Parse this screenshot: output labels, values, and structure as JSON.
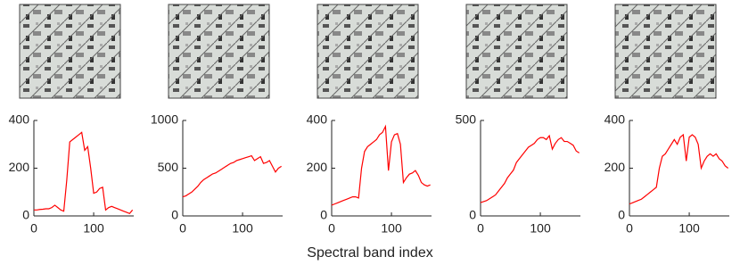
{
  "chart_data": [
    {
      "type": "line",
      "x": [
        0,
        5,
        10,
        15,
        20,
        25,
        30,
        35,
        40,
        45,
        50,
        55,
        60,
        65,
        70,
        75,
        80,
        85,
        90,
        95,
        100,
        105,
        110,
        115,
        120,
        125,
        130,
        135,
        140,
        145,
        150,
        155,
        160,
        165
      ],
      "series": [
        {
          "color": "#ff0000",
          "values": [
            25,
            25,
            27,
            28,
            30,
            30,
            35,
            45,
            35,
            25,
            20,
            150,
            310,
            320,
            330,
            340,
            350,
            275,
            290,
            200,
            95,
            100,
            115,
            120,
            25,
            35,
            40,
            35,
            30,
            25,
            20,
            15,
            10,
            25
          ]
        }
      ],
      "xlim": [
        0,
        167
      ],
      "xticks": [
        0,
        100
      ],
      "ylim": [
        0,
        400
      ],
      "yticks": [
        0,
        200,
        400
      ]
    },
    {
      "type": "line",
      "x": [
        0,
        5,
        10,
        15,
        20,
        25,
        30,
        35,
        40,
        45,
        50,
        55,
        60,
        65,
        70,
        75,
        80,
        85,
        90,
        95,
        100,
        105,
        110,
        115,
        120,
        125,
        130,
        135,
        140,
        145,
        150,
        155,
        160,
        165
      ],
      "series": [
        {
          "color": "#ff0000",
          "values": [
            200,
            210,
            230,
            250,
            280,
            310,
            350,
            380,
            400,
            420,
            440,
            450,
            470,
            490,
            510,
            530,
            550,
            560,
            580,
            590,
            600,
            610,
            620,
            630,
            580,
            600,
            620,
            550,
            560,
            580,
            520,
            460,
            500,
            520
          ]
        }
      ],
      "xlim": [
        0,
        167
      ],
      "xticks": [
        0,
        100
      ],
      "ylim": [
        0,
        1000
      ],
      "yticks": [
        0,
        500,
        1000
      ]
    },
    {
      "type": "line",
      "x": [
        0,
        5,
        10,
        15,
        20,
        25,
        30,
        35,
        40,
        45,
        50,
        55,
        60,
        65,
        70,
        75,
        80,
        85,
        90,
        95,
        100,
        105,
        110,
        115,
        120,
        125,
        130,
        135,
        140,
        145,
        150,
        155,
        160,
        165
      ],
      "series": [
        {
          "color": "#ff0000",
          "values": [
            45,
            50,
            55,
            60,
            65,
            70,
            75,
            80,
            80,
            75,
            200,
            270,
            290,
            300,
            310,
            320,
            340,
            350,
            375,
            190,
            310,
            340,
            345,
            300,
            140,
            160,
            175,
            180,
            190,
            170,
            140,
            130,
            125,
            130
          ]
        }
      ],
      "xlim": [
        0,
        167
      ],
      "xticks": [
        0,
        100
      ],
      "ylim": [
        0,
        400
      ],
      "yticks": [
        0,
        200,
        400
      ]
    },
    {
      "type": "line",
      "x": [
        0,
        5,
        10,
        15,
        20,
        25,
        30,
        35,
        40,
        45,
        50,
        55,
        60,
        65,
        70,
        75,
        80,
        85,
        90,
        95,
        100,
        105,
        110,
        115,
        120,
        125,
        130,
        135,
        140,
        145,
        150,
        155,
        160,
        165
      ],
      "series": [
        {
          "color": "#ff0000",
          "values": [
            70,
            75,
            80,
            90,
            100,
            110,
            130,
            150,
            170,
            200,
            220,
            240,
            280,
            300,
            320,
            340,
            360,
            370,
            380,
            400,
            410,
            410,
            400,
            420,
            350,
            380,
            400,
            410,
            390,
            390,
            380,
            370,
            340,
            330
          ]
        }
      ],
      "xlim": [
        0,
        167
      ],
      "xticks": [
        0,
        100
      ],
      "ylim": [
        0,
        500
      ],
      "yticks": [
        0,
        500
      ]
    },
    {
      "type": "line",
      "x": [
        0,
        5,
        10,
        15,
        20,
        25,
        30,
        35,
        40,
        45,
        50,
        55,
        60,
        65,
        70,
        75,
        80,
        85,
        90,
        95,
        100,
        105,
        110,
        115,
        120,
        125,
        130,
        135,
        140,
        145,
        150,
        155,
        160,
        165
      ],
      "series": [
        {
          "color": "#ff0000",
          "values": [
            50,
            55,
            60,
            65,
            70,
            80,
            90,
            100,
            110,
            120,
            200,
            250,
            260,
            280,
            300,
            320,
            300,
            330,
            340,
            230,
            330,
            340,
            330,
            300,
            200,
            230,
            250,
            260,
            250,
            260,
            240,
            230,
            210,
            200
          ]
        }
      ],
      "xlim": [
        0,
        167
      ],
      "xticks": [
        0,
        100
      ],
      "ylim": [
        0,
        400
      ],
      "yticks": [
        0,
        200,
        400
      ]
    }
  ],
  "xlabel": "Spectral band index"
}
